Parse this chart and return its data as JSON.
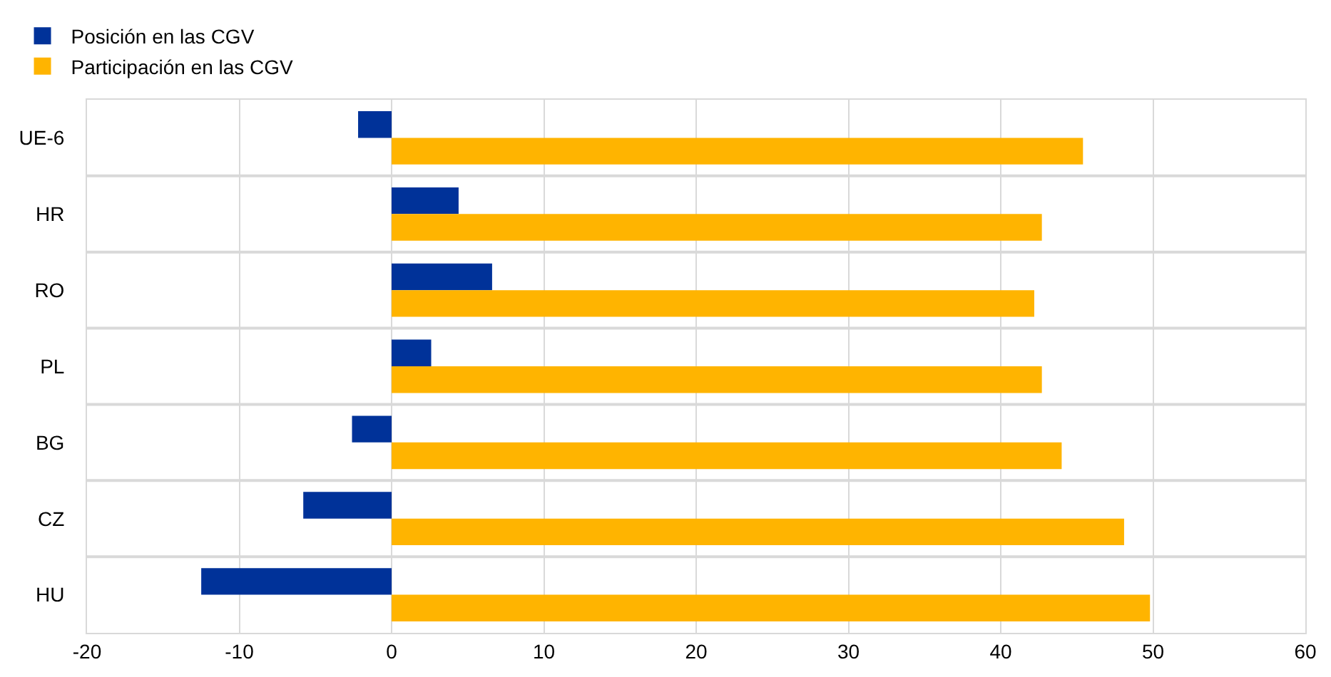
{
  "chart_data": {
    "type": "bar",
    "orientation": "horizontal",
    "categories": [
      "UE-6",
      "HR",
      "RO",
      "PL",
      "BG",
      "CZ",
      "HU"
    ],
    "series": [
      {
        "name": "Posición en las CGV",
        "color": "#003299",
        "values": [
          -2.2,
          4.4,
          6.6,
          2.6,
          -2.6,
          -5.8,
          -12.5
        ]
      },
      {
        "name": "Participación en las CGV",
        "color": "#ffb400",
        "values": [
          45.4,
          42.7,
          42.2,
          42.7,
          44.0,
          48.1,
          49.8
        ]
      }
    ],
    "xlim": [
      -20,
      60
    ],
    "xticks": [
      -20,
      -10,
      0,
      10,
      20,
      30,
      40,
      50,
      60
    ],
    "grid": true,
    "legend": "top left"
  }
}
